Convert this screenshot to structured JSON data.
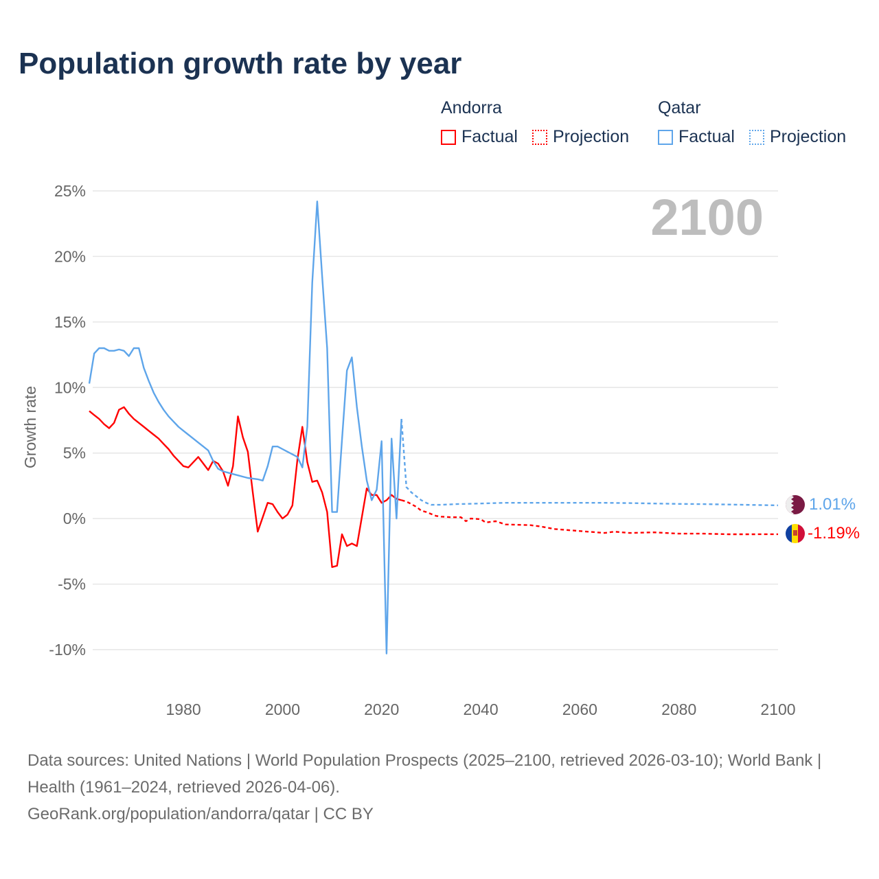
{
  "title": "Population growth rate by year",
  "legend": {
    "groups": [
      {
        "name": "Andorra",
        "color": "#ff0000",
        "factual": "Factual",
        "projection": "Projection"
      },
      {
        "name": "Qatar",
        "color": "#5ea5ea",
        "factual": "Factual",
        "projection": "Projection"
      }
    ]
  },
  "current_year_label": "2100",
  "end_labels": {
    "qatar": "1.01%",
    "andorra": "-1.19%"
  },
  "footer": {
    "sources": "Data sources: United Nations | World Population Prospects (2025–2100, retrieved 2026-03-10); World Bank | Health (1961–2024, retrieved 2026-04-06).",
    "credit": "GeoRank.org/population/andorra/qatar | CC BY"
  },
  "chart_data": {
    "type": "line",
    "title": "Population growth rate by year",
    "xlabel": "",
    "ylabel": "Growth rate",
    "xlim": [
      1961,
      2100
    ],
    "ylim": [
      -10,
      25
    ],
    "x_ticks": [
      1980,
      2000,
      2020,
      2040,
      2060,
      2080,
      2100
    ],
    "x_tick_labels": [
      "1980",
      "2000",
      "2020",
      "2040",
      "2060",
      "2080",
      "2100"
    ],
    "y_ticks": [
      25,
      20,
      15,
      10,
      5,
      0,
      -5,
      -10
    ],
    "y_tick_labels": [
      "25%",
      "20%",
      "15%",
      "10%",
      "5%",
      "0%",
      "-5%",
      "-10%"
    ],
    "grid": true,
    "legend_position": "top-right",
    "series": [
      {
        "name": "Andorra Factual",
        "color": "#ff0000",
        "style": "solid",
        "x_start": 1961,
        "values": [
          8.2,
          7.9,
          7.6,
          7.2,
          6.9,
          7.3,
          8.3,
          8.5,
          8.0,
          7.6,
          7.3,
          7.0,
          6.7,
          6.4,
          6.1,
          5.7,
          5.3,
          4.8,
          4.4,
          4.0,
          3.9,
          4.3,
          4.7,
          4.2,
          3.7,
          4.4,
          4.2,
          3.6,
          2.5,
          4.0,
          7.8,
          6.2,
          5.1,
          2.0,
          -1.0,
          0.1,
          1.2,
          1.1,
          0.5,
          0.0,
          0.3,
          1.0,
          4.5,
          7.0,
          4.3,
          2.8,
          2.9,
          2.0,
          0.5,
          -3.7,
          -3.6,
          -1.2,
          -2.1,
          -1.9,
          -2.1,
          0.1,
          2.3,
          1.8,
          1.8,
          1.2,
          1.4,
          1.8,
          1.5,
          1.4
        ]
      },
      {
        "name": "Andorra Projection",
        "color": "#ff0000",
        "style": "dotted",
        "x": [
          2024,
          2025,
          2026,
          2027,
          2028,
          2029,
          2030,
          2031,
          2032,
          2034,
          2036,
          2037,
          2038,
          2040,
          2041,
          2043,
          2045,
          2050,
          2052,
          2055,
          2060,
          2065,
          2067,
          2070,
          2075,
          2080,
          2085,
          2090,
          2095,
          2100
        ],
        "y": [
          1.4,
          1.3,
          1.1,
          0.9,
          0.6,
          0.5,
          0.35,
          0.2,
          0.15,
          0.1,
          0.1,
          -0.2,
          0.0,
          -0.05,
          -0.3,
          -0.2,
          -0.45,
          -0.5,
          -0.6,
          -0.8,
          -0.95,
          -1.1,
          -1.0,
          -1.1,
          -1.05,
          -1.15,
          -1.15,
          -1.2,
          -1.2,
          -1.19
        ]
      },
      {
        "name": "Qatar Factual",
        "color": "#5ea5ea",
        "style": "solid",
        "x_start": 1961,
        "values": [
          10.3,
          12.6,
          13.0,
          13.0,
          12.8,
          12.8,
          12.9,
          12.8,
          12.4,
          13.0,
          13.0,
          11.5,
          10.5,
          9.6,
          8.9,
          8.3,
          7.8,
          7.4,
          7.0,
          6.7,
          6.4,
          6.1,
          5.8,
          5.5,
          5.2,
          4.4,
          3.8,
          3.6,
          3.5,
          3.4,
          3.3,
          3.2,
          3.1,
          3.05,
          3.0,
          2.9,
          4.0,
          5.5,
          5.5,
          5.3,
          5.1,
          4.9,
          4.7,
          3.9,
          7.0,
          18.0,
          24.2,
          18.5,
          13.0,
          0.5,
          0.5,
          6.0,
          11.3,
          12.3,
          8.5,
          5.5,
          2.9,
          1.4,
          2.2,
          5.9,
          -10.3,
          6.1,
          0.0,
          7.6
        ]
      },
      {
        "name": "Qatar Projection",
        "color": "#5ea5ea",
        "style": "dotted",
        "x": [
          2024,
          2025,
          2026,
          2027,
          2028,
          2029,
          2030,
          2031,
          2032,
          2035,
          2040,
          2045,
          2050,
          2055,
          2060,
          2065,
          2070,
          2075,
          2080,
          2085,
          2090,
          2095,
          2100
        ],
        "y": [
          7.6,
          2.4,
          2.0,
          1.7,
          1.4,
          1.2,
          1.05,
          1.05,
          1.05,
          1.1,
          1.15,
          1.2,
          1.2,
          1.2,
          1.2,
          1.2,
          1.18,
          1.15,
          1.12,
          1.1,
          1.07,
          1.04,
          1.01
        ]
      }
    ]
  }
}
